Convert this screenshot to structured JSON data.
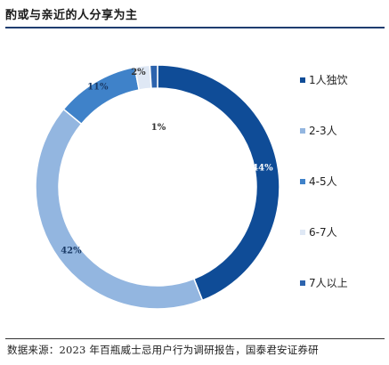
{
  "header": {
    "title": "酌或与亲近的人分享为主"
  },
  "footer": {
    "source": "数据来源：2023 年百瓶威士忌用户行为调研报告，国泰君安证券研"
  },
  "chart_data": {
    "type": "pie",
    "subtype": "donut",
    "categories": [
      "1人独饮",
      "2-3人",
      "4-5人",
      "6-7人",
      "7人以上"
    ],
    "values": [
      44,
      42,
      11,
      2,
      1
    ],
    "labels": [
      "44%",
      "42%",
      "11%",
      "2%",
      "1%"
    ],
    "colors": [
      "#0f4c97",
      "#93b6e0",
      "#3f82c9",
      "#dfe8f5",
      "#2c63ad"
    ],
    "label_colors": [
      "#ffffff",
      "#1a3a66",
      "#1a3a66",
      "#333333",
      "#333333"
    ],
    "legend_placement": "right"
  }
}
